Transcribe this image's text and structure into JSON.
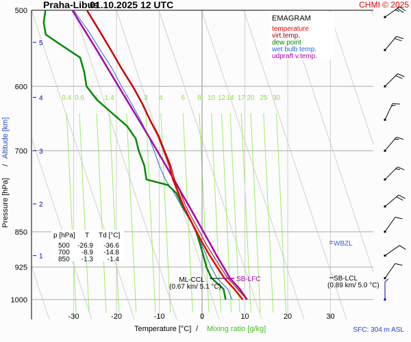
{
  "header": {
    "station": "Praha-Libus",
    "datetime": "01.10.2025 12 UTC",
    "credit": "CHMI © 2025"
  },
  "legend": {
    "title": "EMAGRAM",
    "items": [
      {
        "label": "temperature",
        "color": "#ee0000"
      },
      {
        "label": "virt.temp.",
        "color": "#990000"
      },
      {
        "label": "dew point",
        "color": "#008800"
      },
      {
        "label": "wet bulb temp.",
        "color": "#2266dd"
      },
      {
        "label": "udpraft v.temp.",
        "color": "#aa00aa"
      }
    ]
  },
  "summary_table": {
    "headers": [
      "p [hPa]",
      "T",
      "Td [°C]"
    ],
    "rows": [
      [
        "500",
        "-26.9",
        "-36.6"
      ],
      [
        "700",
        "-8.9",
        "-14.8"
      ],
      [
        "850",
        "-1.3",
        "-1.4"
      ]
    ]
  },
  "annotations": {
    "ml_ccl": "ML-CCL",
    "ml_ccl_detail": "(0.67 km/ 5.1 °C)",
    "sb_lfc": "SB-LFC",
    "sb_lcl": "SB-LCL",
    "sb_lcl_detail": "(0.89 km/ 5.0 °C)",
    "wbzl": "WBZL",
    "sfc": "SFC: 304 m ASL"
  },
  "chart_data": {
    "type": "line",
    "title": "Praha-Libus 01.10.2025 12 UTC",
    "subtitle": "EMAGRAM",
    "xlabel": "Temperature [°C]",
    "xlabel2": "Mixing ratio [g/kg]",
    "ylabel": "Pressure [hPa]",
    "ylabel2": "Altitude [km]",
    "xlim": [
      -35,
      35
    ],
    "ylim": [
      1050,
      500
    ],
    "x_ticks": [
      -30,
      -20,
      -10,
      0,
      10,
      20,
      30
    ],
    "p_ticks": [
      500,
      600,
      700,
      850,
      925,
      1000
    ],
    "altitude_ticks_km": [
      {
        "km": 1,
        "p": 900
      },
      {
        "km": 2,
        "p": 795
      },
      {
        "km": 3,
        "p": 700
      },
      {
        "km": 4,
        "p": 616
      },
      {
        "km": 5,
        "p": 540
      }
    ],
    "mixing_ratio_labels": [
      "0.4",
      "0.6",
      "1",
      "1.4",
      "2",
      "3",
      "4",
      "6",
      "8",
      "10",
      "12",
      "14",
      "17",
      "20",
      "25",
      "30"
    ],
    "grid": true,
    "series": [
      {
        "name": "temperature",
        "color": "#ee0000",
        "points": [
          [
            1000,
            9.5
          ],
          [
            975,
            7.5
          ],
          [
            950,
            5.2
          ],
          [
            925,
            3.5
          ],
          [
            900,
            1.8
          ],
          [
            875,
            0.2
          ],
          [
            850,
            -1.3
          ],
          [
            825,
            -2.8
          ],
          [
            800,
            -4.3
          ],
          [
            775,
            -5.5
          ],
          [
            750,
            -6.8
          ],
          [
            725,
            -7.6
          ],
          [
            700,
            -8.9
          ],
          [
            675,
            -10.3
          ],
          [
            650,
            -12.2
          ],
          [
            625,
            -14.0
          ],
          [
            600,
            -16.2
          ],
          [
            575,
            -18.8
          ],
          [
            550,
            -21.3
          ],
          [
            525,
            -24.0
          ],
          [
            500,
            -26.9
          ]
        ]
      },
      {
        "name": "virt.temp.",
        "color": "#990000",
        "points": [
          [
            1000,
            10.5
          ],
          [
            975,
            8.3
          ],
          [
            950,
            6.0
          ],
          [
            925,
            4.3
          ],
          [
            900,
            2.6
          ],
          [
            875,
            0.9
          ],
          [
            850,
            -0.6
          ],
          [
            825,
            -2.2
          ],
          [
            800,
            -3.8
          ],
          [
            775,
            -5.0
          ],
          [
            750,
            -6.4
          ],
          [
            725,
            -7.3
          ],
          [
            700,
            -8.7
          ],
          [
            675,
            -10.1
          ],
          [
            650,
            -12.1
          ],
          [
            625,
            -13.9
          ],
          [
            600,
            -16.1
          ],
          [
            575,
            -18.7
          ],
          [
            550,
            -21.2
          ],
          [
            525,
            -24.0
          ],
          [
            500,
            -26.9
          ]
        ]
      },
      {
        "name": "dew point",
        "color": "#008800",
        "points": [
          [
            1000,
            5.5
          ],
          [
            975,
            5.0
          ],
          [
            950,
            2.2
          ],
          [
            925,
            1.0
          ],
          [
            900,
            0.3
          ],
          [
            875,
            -0.5
          ],
          [
            850,
            -1.4
          ],
          [
            825,
            -2.8
          ],
          [
            800,
            -4.5
          ],
          [
            775,
            -6.0
          ],
          [
            760,
            -8.0
          ],
          [
            750,
            -13.0
          ],
          [
            725,
            -13.5
          ],
          [
            700,
            -14.8
          ],
          [
            680,
            -15.5
          ],
          [
            660,
            -17.5
          ],
          [
            640,
            -21.0
          ],
          [
            620,
            -24.5
          ],
          [
            600,
            -27.0
          ],
          [
            580,
            -27.5
          ],
          [
            560,
            -28.5
          ],
          [
            545,
            -32.5
          ],
          [
            530,
            -36.5
          ],
          [
            515,
            -37.0
          ],
          [
            500,
            -36.6
          ]
        ]
      },
      {
        "name": "wet bulb temp.",
        "color": "#2266dd",
        "points": [
          [
            1000,
            7.0
          ],
          [
            975,
            6.0
          ],
          [
            950,
            3.5
          ],
          [
            925,
            2.1
          ],
          [
            900,
            1.0
          ],
          [
            875,
            -0.2
          ],
          [
            850,
            -1.4
          ],
          [
            825,
            -3.0
          ],
          [
            800,
            -4.8
          ],
          [
            775,
            -6.5
          ],
          [
            750,
            -8.6
          ],
          [
            725,
            -10.0
          ],
          [
            700,
            -11.2
          ],
          [
            675,
            -12.6
          ],
          [
            650,
            -14.4
          ],
          [
            625,
            -16.5
          ],
          [
            600,
            -18.8
          ],
          [
            575,
            -21.0
          ],
          [
            550,
            -23.8
          ],
          [
            525,
            -26.6
          ],
          [
            500,
            -30.0
          ]
        ]
      },
      {
        "name": "udpraft v.temp.",
        "color": "#aa00aa",
        "points": [
          [
            1000,
            10.5
          ],
          [
            975,
            8.8
          ],
          [
            950,
            6.5
          ],
          [
            925,
            5.0
          ],
          [
            900,
            3.4
          ],
          [
            875,
            1.9
          ],
          [
            850,
            0.3
          ],
          [
            825,
            -1.3
          ],
          [
            800,
            -3.0
          ],
          [
            775,
            -4.8
          ],
          [
            750,
            -6.6
          ],
          [
            725,
            -8.5
          ],
          [
            700,
            -10.5
          ],
          [
            675,
            -12.6
          ],
          [
            650,
            -14.8
          ],
          [
            625,
            -17.1
          ],
          [
            600,
            -19.5
          ],
          [
            575,
            -22.0
          ],
          [
            550,
            -24.6
          ],
          [
            525,
            -27.4
          ],
          [
            500,
            -30.3
          ]
        ]
      }
    ],
    "wind_barbs": [
      {
        "p": 500,
        "dir_deg": 235,
        "speed_kt": 25
      },
      {
        "p": 550,
        "dir_deg": 220,
        "speed_kt": 20
      },
      {
        "p": 600,
        "dir_deg": 225,
        "speed_kt": 20
      },
      {
        "p": 650,
        "dir_deg": 205,
        "speed_kt": 15
      },
      {
        "p": 700,
        "dir_deg": 220,
        "speed_kt": 15
      },
      {
        "p": 750,
        "dir_deg": 225,
        "speed_kt": 15
      },
      {
        "p": 800,
        "dir_deg": 230,
        "speed_kt": 20
      },
      {
        "p": 850,
        "dir_deg": 215,
        "speed_kt": 10
      },
      {
        "p": 900,
        "dir_deg": 235,
        "speed_kt": 10
      },
      {
        "p": 950,
        "dir_deg": 215,
        "speed_kt": 10
      },
      {
        "p": 1000,
        "dir_deg": 180,
        "speed_kt": 5
      }
    ]
  }
}
